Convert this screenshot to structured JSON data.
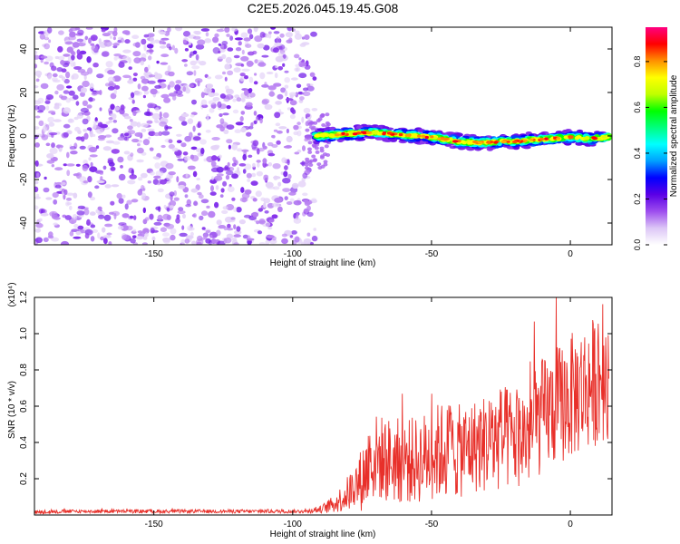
{
  "figure_title": "C2E5.2026.045.19.45.G08",
  "chart_data": [
    {
      "type": "heatmap",
      "title": "C2E5.2026.045.19.45.G08",
      "xlabel": "Height of straight line (km)",
      "ylabel": "Frequency (Hz)",
      "xlim": [
        -193,
        15
      ],
      "ylim": [
        -50,
        50
      ],
      "x_ticks": [
        -150,
        -100,
        -50,
        0
      ],
      "x_tick_labels": [
        "-150",
        "-100",
        "-50",
        "0"
      ],
      "y_ticks": [
        -40,
        -20,
        0,
        20,
        40
      ],
      "y_tick_labels": [
        "-40",
        "-20",
        "0",
        "20",
        "40"
      ],
      "noise_region": {
        "x_range": [
          -193,
          -92
        ],
        "f_range": [
          -50,
          50
        ],
        "amplitude": "low (0.0-0.15)"
      },
      "signal_track": {
        "x": [
          -92,
          -85,
          -80,
          -75,
          -70,
          -65,
          -60,
          -55,
          -50,
          -45,
          -40,
          -35,
          -30,
          -25,
          -20,
          -15,
          -10,
          -5,
          0,
          5,
          10,
          14
        ],
        "freq_hz": [
          0,
          0.5,
          1,
          1.5,
          1.5,
          1,
          0.5,
          0,
          -0.5,
          -1.5,
          -2.5,
          -3,
          -3,
          -2.5,
          -2.5,
          -2,
          -1.5,
          -1,
          -0.5,
          -1,
          -1,
          -0.5
        ],
        "peak_amplitude": 0.95
      },
      "colorbar": {
        "label": "Normalized spectral amplitude",
        "range": [
          0,
          0.95
        ],
        "ticks": [
          0.0,
          0.2,
          0.4,
          0.6,
          0.8
        ],
        "tick_labels": [
          "0.0",
          "0.2",
          "0.4",
          "0.6",
          "0.8"
        ],
        "colors": [
          "#ffffff",
          "#dcc6f6",
          "#9d4dee",
          "#5a00e6",
          "#0000ff",
          "#00a0ff",
          "#00ffff",
          "#00ff80",
          "#00ff00",
          "#c0ff00",
          "#ffff00",
          "#ff9000",
          "#ff0000",
          "#ff0080"
        ]
      }
    },
    {
      "type": "line",
      "xlabel": "Height of straight line (km)",
      "ylabel": "SNR (10 * v/v)",
      "multiplier_label": "(x10⁴)",
      "xlim": [
        -193,
        15
      ],
      "ylim": [
        0,
        1.2
      ],
      "x_ticks": [
        -150,
        -100,
        -50,
        0
      ],
      "x_tick_labels": [
        "-150",
        "-100",
        "-50",
        "0"
      ],
      "y_ticks": [
        0.2,
        0.4,
        0.6,
        0.8,
        1.0,
        1.2
      ],
      "y_tick_labels": [
        "0.2",
        "0.4",
        "0.6",
        "0.8",
        "1.0",
        "1.2"
      ],
      "series": [
        {
          "name": "SNR",
          "color": "#e8302a",
          "x": [
            -193,
            -180,
            -160,
            -140,
            -120,
            -100,
            -95,
            -90,
            -85,
            -80,
            -75,
            -72,
            -70,
            -65,
            -60,
            -55,
            -50,
            -45,
            -40,
            -35,
            -30,
            -25,
            -20,
            -15,
            -10,
            -5,
            0,
            5,
            10,
            14
          ],
          "y": [
            0.015,
            0.02,
            0.02,
            0.02,
            0.02,
            0.02,
            0.02,
            0.03,
            0.06,
            0.12,
            0.2,
            0.3,
            0.32,
            0.3,
            0.3,
            0.3,
            0.34,
            0.36,
            0.35,
            0.38,
            0.4,
            0.42,
            0.42,
            0.45,
            0.55,
            0.6,
            0.65,
            0.7,
            0.75,
            0.8
          ],
          "spread": [
            0.01,
            0.01,
            0.01,
            0.01,
            0.01,
            0.01,
            0.01,
            0.02,
            0.05,
            0.1,
            0.18,
            0.26,
            0.24,
            0.24,
            0.24,
            0.24,
            0.26,
            0.28,
            0.26,
            0.26,
            0.28,
            0.3,
            0.28,
            0.3,
            0.32,
            0.33,
            0.35,
            0.36,
            0.36,
            0.38
          ]
        }
      ]
    }
  ]
}
